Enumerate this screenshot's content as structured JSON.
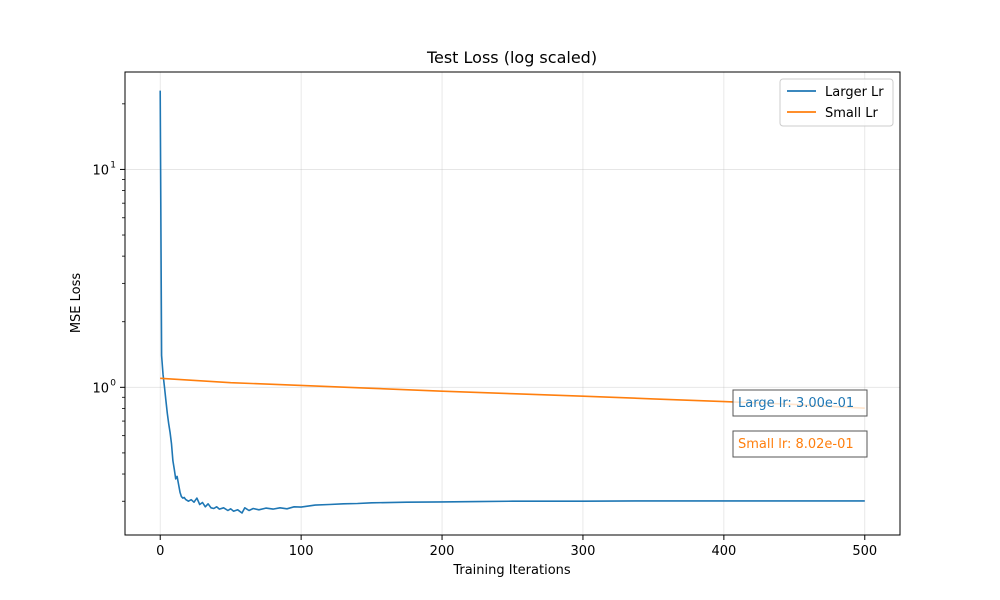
{
  "chart_data": {
    "type": "line",
    "title": "Test Loss (log scaled)",
    "xlabel": "Training Iterations",
    "ylabel": "MSE Loss",
    "xlim": [
      -25,
      525
    ],
    "ylim": [
      0.21,
      28
    ],
    "yscale": "log",
    "grid": true,
    "legend_position": "top-right",
    "x_ticks": [
      0,
      100,
      200,
      300,
      400,
      500
    ],
    "x_tick_labels": [
      "0",
      "100",
      "200",
      "300",
      "400",
      "500"
    ],
    "y_major_ticks": [
      1,
      10
    ],
    "y_major_labels": [
      "10",
      "10"
    ],
    "y_major_exponents": [
      "0",
      "1"
    ],
    "y_minor_ticks": [
      0.3,
      0.4,
      0.5,
      0.6,
      0.7,
      0.8,
      0.9,
      2,
      3,
      4,
      5,
      6,
      7,
      8,
      9,
      20
    ],
    "series": [
      {
        "name": "Larger Lr",
        "color": "#1f77b4",
        "x": [
          0,
          1,
          2,
          3,
          4,
          5,
          6,
          7,
          8,
          9,
          10,
          11,
          12,
          13,
          14,
          15,
          16,
          17,
          18,
          20,
          22,
          24,
          26,
          28,
          30,
          32,
          34,
          36,
          38,
          40,
          42,
          45,
          48,
          50,
          52,
          55,
          58,
          60,
          63,
          66,
          70,
          75,
          80,
          85,
          90,
          95,
          100,
          110,
          120,
          130,
          140,
          150,
          175,
          200,
          225,
          250,
          275,
          300,
          350,
          400,
          450,
          500
        ],
        "y": [
          23,
          1.4,
          1.15,
          1.0,
          0.87,
          0.76,
          0.68,
          0.62,
          0.55,
          0.46,
          0.42,
          0.38,
          0.39,
          0.36,
          0.33,
          0.315,
          0.31,
          0.312,
          0.306,
          0.3,
          0.305,
          0.297,
          0.31,
          0.29,
          0.296,
          0.283,
          0.292,
          0.28,
          0.278,
          0.283,
          0.276,
          0.28,
          0.272,
          0.277,
          0.27,
          0.274,
          0.265,
          0.28,
          0.272,
          0.278,
          0.274,
          0.279,
          0.276,
          0.28,
          0.277,
          0.283,
          0.282,
          0.288,
          0.29,
          0.292,
          0.293,
          0.295,
          0.297,
          0.298,
          0.299,
          0.3,
          0.3,
          0.3,
          0.301,
          0.301,
          0.301,
          0.301
        ]
      },
      {
        "name": "Small Lr",
        "color": "#ff7f0e",
        "x": [
          0,
          50,
          100,
          150,
          200,
          250,
          300,
          350,
          400,
          450,
          500
        ],
        "y": [
          1.1,
          1.05,
          1.02,
          0.99,
          0.96,
          0.935,
          0.91,
          0.885,
          0.86,
          0.835,
          0.802
        ]
      }
    ],
    "annotations": [
      {
        "text": "Large lr: 3.00e-01",
        "color": "#1f77b4"
      },
      {
        "text": "Small lr: 8.02e-01",
        "color": "#ff7f0e"
      }
    ]
  }
}
